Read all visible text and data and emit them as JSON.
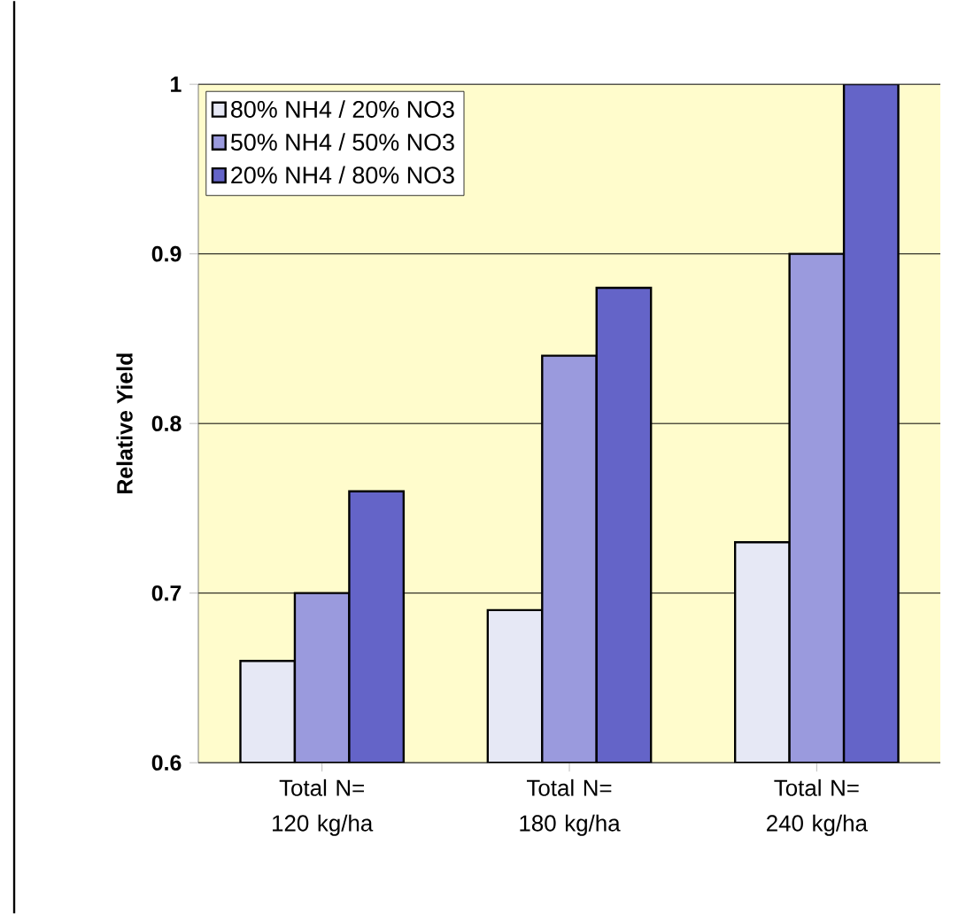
{
  "chart_data": {
    "type": "bar",
    "ylabel": "Relative Yield",
    "categories": [
      "Total N= 120 kg/ha",
      "Total N= 180 kg/ha",
      "Total N= 240 kg/ha"
    ],
    "series": [
      {
        "name": "80% NH4 / 20% NO3",
        "color": "#e6e8f5",
        "values": [
          0.66,
          0.69,
          0.73
        ]
      },
      {
        "name": "50% NH4 / 50% NO3",
        "color": "#9a9add",
        "values": [
          0.7,
          0.84,
          0.9
        ]
      },
      {
        "name": "20% NH4 / 80% NO3",
        "color": "#6464c8",
        "values": [
          0.76,
          0.88,
          1.0
        ]
      }
    ],
    "ylim": [
      0.6,
      1
    ],
    "yticks": [
      0.6,
      0.7,
      0.8,
      0.9,
      1
    ],
    "grid": "y",
    "legend": "top left"
  }
}
